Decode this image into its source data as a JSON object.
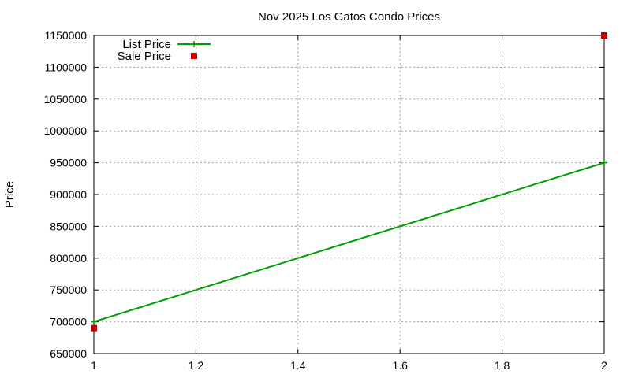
{
  "chart_data": {
    "type": "line",
    "title": "Nov 2025 Los Gatos Condo Prices",
    "xlabel": "",
    "ylabel": "Price",
    "xlim": [
      1,
      2
    ],
    "ylim": [
      650000,
      1150000
    ],
    "x_ticks": [
      "1",
      "1.2",
      "1.4",
      "1.6",
      "1.8",
      "2"
    ],
    "y_ticks": [
      "650000",
      "700000",
      "750000",
      "800000",
      "850000",
      "900000",
      "950000",
      "1000000",
      "1050000",
      "1100000",
      "1150000"
    ],
    "grid": true,
    "legend_position": "top-left",
    "series": [
      {
        "name": "List Price",
        "style": "line-with-plus-markers",
        "color": "#009e00",
        "points": [
          [
            1,
            700000
          ],
          [
            2,
            950000
          ]
        ]
      },
      {
        "name": "Sale Price",
        "style": "square-markers",
        "color": "#c00000",
        "points": [
          [
            1,
            690000
          ],
          [
            2,
            1150000
          ]
        ]
      }
    ]
  }
}
